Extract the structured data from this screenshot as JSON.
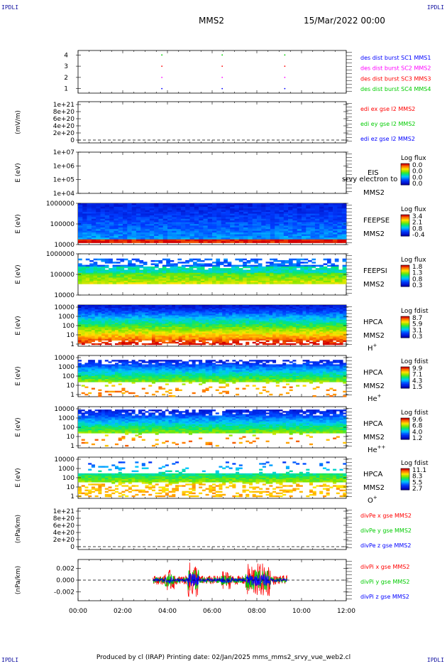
{
  "page": {
    "corner_label": "IPDLI",
    "spacecraft": "MMS2",
    "date": "15/Mar/2022 00:00",
    "footer": "Produced by cl (IRAP)   Printing date: 02/Jan/2025   mms_mms2_srvy_vue_web2.cl"
  },
  "colors": {
    "blue": "#0000ff",
    "magenta": "#ff00ff",
    "red": "#ff0000",
    "green": "#00cc00"
  },
  "chart_data": [
    {
      "type": "scatter",
      "ylim": [
        0.6,
        4.4
      ],
      "y_ticks": [
        "4",
        "3",
        "2",
        "1"
      ],
      "legend": [
        {
          "text": "des dist burst SC1 MMS1",
          "color": "#0000ff"
        },
        {
          "text": "des dist burst SC2 MMS2",
          "color": "#ff00ff"
        },
        {
          "text": "des dist burst SC3 MMS3",
          "color": "#ff0000"
        },
        {
          "text": "des dist burst SC4 MMS4",
          "color": "#00cc00"
        }
      ],
      "series": [
        {
          "name": "des dist burst SC1 MMS1",
          "x": [
            3.75,
            6.45,
            9.25
          ],
          "y": [
            1,
            1,
            1
          ]
        },
        {
          "name": "des dist burst SC2 MMS2",
          "x": [
            3.75,
            6.45,
            9.25
          ],
          "y": [
            2,
            2,
            2
          ]
        },
        {
          "name": "des dist burst SC3 MMS3",
          "x": [
            3.75,
            6.45,
            9.25
          ],
          "y": [
            3,
            3,
            3
          ]
        },
        {
          "name": "des dist burst SC4 MMS4",
          "x": [
            3.75,
            6.45,
            9.25
          ],
          "y": [
            4,
            4,
            4
          ]
        }
      ]
    },
    {
      "type": "line",
      "ylabel": "(mV/m)",
      "y_ticks": [
        "1e+21",
        "8e+20",
        "6e+20",
        "4e+20",
        "2e+20",
        "0"
      ],
      "legend": [
        {
          "text": "edi ex gse l2 MMS2",
          "color": "#ff0000"
        },
        {
          "text": "edi ey gse l2 MMS2",
          "color": "#00cc00"
        },
        {
          "text": "edi ez gse l2 MMS2",
          "color": "#0000ff"
        }
      ]
    },
    {
      "type": "heatmap",
      "ylabel": "E (eV)",
      "y_ticks": [
        "1e+07",
        "1e+06",
        "1e+05",
        "1e+04"
      ],
      "label": "EIS",
      "overlap_text": "srvy electron to",
      "sc": "MMS2",
      "cbar_title": "Log flux",
      "cbar_ticks": [
        "0.0",
        "0.0",
        "0.0",
        "0.0"
      ]
    },
    {
      "type": "heatmap",
      "ylabel": "E (eV)",
      "y_ticks": [
        "1000000",
        "100000",
        "10000"
      ],
      "label": "FEEPSE",
      "sc": "MMS2",
      "cbar_title": "Log flux",
      "cbar_ticks": [
        "3.4",
        "2.1",
        "0.8",
        "-0.4"
      ]
    },
    {
      "type": "heatmap",
      "ylabel": "E (eV)",
      "y_ticks": [
        "1000000",
        "100000",
        "10000"
      ],
      "label": "FEEPSI",
      "sc": "MMS2",
      "cbar_title": "Log flux",
      "cbar_ticks": [
        "1.8",
        "1.3",
        "0.8",
        "0.3"
      ]
    },
    {
      "type": "heatmap",
      "ylabel": "E (eV)",
      "y_ticks": [
        "10000",
        "1000",
        "100",
        "10",
        "1"
      ],
      "label": "HPCA",
      "sc": "MMS2",
      "species": "H",
      "charge": "+",
      "cbar_title": "Log fdist",
      "cbar_ticks": [
        "8.7",
        "5.9",
        "3.1",
        "0.3"
      ]
    },
    {
      "type": "heatmap",
      "ylabel": "E (eV)",
      "y_ticks": [
        "10000",
        "1000",
        "100",
        "10",
        "1"
      ],
      "label": "HPCA",
      "sc": "MMS2",
      "species": "He",
      "charge": "+",
      "cbar_title": "Log fdist",
      "cbar_ticks": [
        "9.9",
        "7.1",
        "4.3",
        "1.5"
      ]
    },
    {
      "type": "heatmap",
      "ylabel": "E (eV)",
      "y_ticks": [
        "10000",
        "1000",
        "100",
        "10",
        "1"
      ],
      "label": "HPCA",
      "sc": "MMS2",
      "species": "He",
      "charge": "++",
      "cbar_title": "Log fdist",
      "cbar_ticks": [
        "9.6",
        "6.8",
        "4.0",
        "1.2"
      ]
    },
    {
      "type": "heatmap",
      "ylabel": "E (eV)",
      "y_ticks": [
        "10000",
        "1000",
        "100",
        "10",
        "1"
      ],
      "label": "HPCA",
      "sc": "MMS2",
      "species": "O",
      "charge": "+",
      "cbar_title": "Log fdist",
      "cbar_ticks": [
        "11.1",
        "8.3",
        "5.5",
        "2.7"
      ]
    },
    {
      "type": "line",
      "ylabel": "(nPa/km)",
      "y_ticks": [
        "1e+21",
        "8e+20",
        "6e+20",
        "4e+20",
        "2e+20",
        "0"
      ],
      "legend": [
        {
          "text": "divPe x gse MMS2",
          "color": "#ff0000"
        },
        {
          "text": "divPe y gse MMS2",
          "color": "#00cc00"
        },
        {
          "text": "divPe z gse MMS2",
          "color": "#0000ff"
        }
      ]
    },
    {
      "type": "line",
      "ylabel": "(nPa/km)",
      "y_ticks": [
        "0.002",
        "0.000",
        "-0.002"
      ],
      "ylim": [
        -0.0035,
        0.0035
      ],
      "x_active_range": [
        3.35,
        9.35
      ],
      "legend": [
        {
          "text": "divPi x gse MMS2",
          "color": "#ff0000"
        },
        {
          "text": "divPi y gse MMS2",
          "color": "#00cc00"
        },
        {
          "text": "divPi z gse MMS2",
          "color": "#0000ff"
        }
      ]
    }
  ],
  "x_axis": {
    "ticks": [
      "00:00",
      "02:00",
      "04:00",
      "06:00",
      "08:00",
      "10:00",
      "12:00"
    ],
    "xlim": [
      0,
      12
    ]
  }
}
